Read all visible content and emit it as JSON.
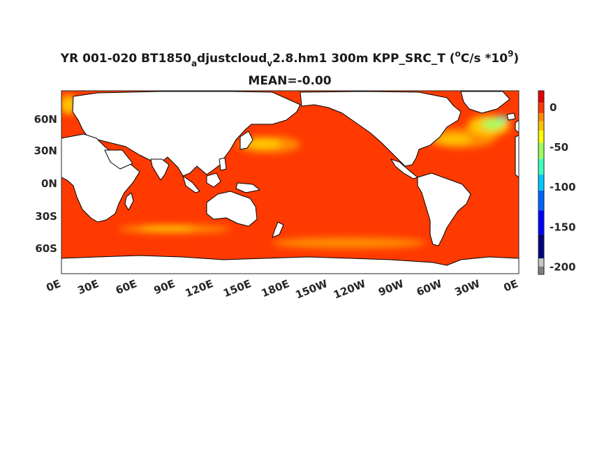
{
  "title": {
    "prefix": "YR 001-020 BT1850",
    "sub_a": "a",
    "mid": "djustcloud",
    "sub_v": "v",
    "suffix": "2.8.hm1 300m KPP_SRC_T (",
    "unit_o": "o",
    "unit_c": "C/s *10",
    "exp": "9",
    "close": ")"
  },
  "mean_label": "MEAN=-0.00",
  "lat_ticks": [
    "60N",
    "30N",
    "0N",
    "30S",
    "60S"
  ],
  "lon_ticks": [
    "0E",
    "30E",
    "60E",
    "90E",
    "120E",
    "150E",
    "180E",
    "150W",
    "120W",
    "90W",
    "60W",
    "30W",
    "0E"
  ],
  "colorbar": {
    "ticks": [
      "0",
      "-50",
      "-100",
      "-150",
      "-200"
    ],
    "tick_values": [
      0,
      -50,
      -100,
      -150,
      -200
    ],
    "range": [
      -210,
      20
    ],
    "colors": [
      "#7f7f7f",
      "#c8c8c8",
      "#00007f",
      "#0000ff",
      "#0063ff",
      "#00c8ff",
      "#40ffbf",
      "#9bff60",
      "#ffff00",
      "#ffc400",
      "#ff8c00",
      "#ff3a00",
      "#e60000"
    ]
  },
  "chart_data": {
    "type": "heatmap",
    "title": "YR 001-020 BT1850adjustcloudv2.8.hm1 300m KPP_SRC_T (oC/s *109)",
    "subtitle": "MEAN=-0.00",
    "x_range": [
      0,
      360
    ],
    "y_range": [
      -80,
      90
    ],
    "colorbar_range": [
      -210,
      20
    ],
    "background_value": -2,
    "regions": [
      {
        "lon": 160,
        "lat": 40,
        "value": -40
      },
      {
        "lon": 300,
        "lat": 40,
        "value": -45
      },
      {
        "lon": 330,
        "lat": 55,
        "value": -70
      },
      {
        "lon": 120,
        "lat": -42,
        "value": -25
      },
      {
        "lon": 240,
        "lat": -57,
        "value": -25
      }
    ]
  }
}
